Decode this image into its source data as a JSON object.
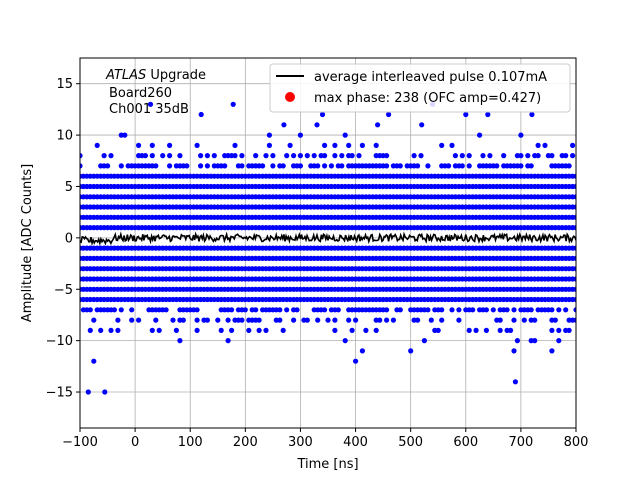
{
  "chart_data": {
    "type": "scatter",
    "xlabel": "Time [ns]",
    "ylabel": "Amplitude [ADC Counts]",
    "xlim": [
      -100,
      800
    ],
    "ylim": [
      -18.5,
      17.5
    ],
    "xticks": [
      -100,
      0,
      100,
      200,
      300,
      400,
      500,
      600,
      700,
      800
    ],
    "yticks": [
      -15,
      -10,
      -5,
      0,
      5,
      10,
      15
    ],
    "grid": true,
    "legend_position": "top-right",
    "annotation": {
      "line1_italic": "ATLAS",
      "line1_rest": " Upgrade",
      "line2": "Board260",
      "line3": "Ch001 35dB"
    },
    "series": [
      {
        "name": "average interleaved pulse 0.107mA",
        "type": "line",
        "color": "#000000",
        "x_range": [
          -100,
          800
        ],
        "mean": 0.0,
        "noise": 0.35
      },
      {
        "name": "max phase: 238 (OFC amp=0.427)",
        "type": "marker",
        "color": "#ff0000"
      },
      {
        "name": "",
        "type": "scatter",
        "color": "#0000ff",
        "dense_levels": [
          -6,
          -5,
          -4,
          -3,
          -2,
          -1,
          1,
          2,
          3,
          4,
          5,
          6
        ],
        "sparse_levels": [
          {
            "y": 7,
            "density": 0.7
          },
          {
            "y": 8,
            "density": 0.4
          },
          {
            "y": -7,
            "density": 0.6
          },
          {
            "y": -8,
            "density": 0.35
          },
          {
            "y": 9,
            "density": 0.12
          },
          {
            "y": -9,
            "density": 0.2
          },
          {
            "y": 10,
            "density": 0.03
          },
          {
            "y": -10,
            "density": 0.08
          },
          {
            "y": -11,
            "density": 0.03
          }
        ],
        "outliers": [
          {
            "x": -85,
            "y": -15
          },
          {
            "x": -55,
            "y": -15
          },
          {
            "x": 28,
            "y": 13
          },
          {
            "x": 178,
            "y": 13
          },
          {
            "x": 120,
            "y": 12
          },
          {
            "x": 270,
            "y": 11
          },
          {
            "x": 330,
            "y": 11
          },
          {
            "x": 340,
            "y": 12
          },
          {
            "x": 460,
            "y": 12
          },
          {
            "x": 540,
            "y": 13
          },
          {
            "x": 600,
            "y": 12
          },
          {
            "x": 640,
            "y": 12
          },
          {
            "x": 690,
            "y": -14
          },
          {
            "x": -75,
            "y": -12
          },
          {
            "x": 400,
            "y": -12
          },
          {
            "x": 720,
            "y": 12
          },
          {
            "x": 520,
            "y": 11
          },
          {
            "x": 440,
            "y": 11
          }
        ],
        "point_spacing_ns": 6.25
      }
    ]
  }
}
